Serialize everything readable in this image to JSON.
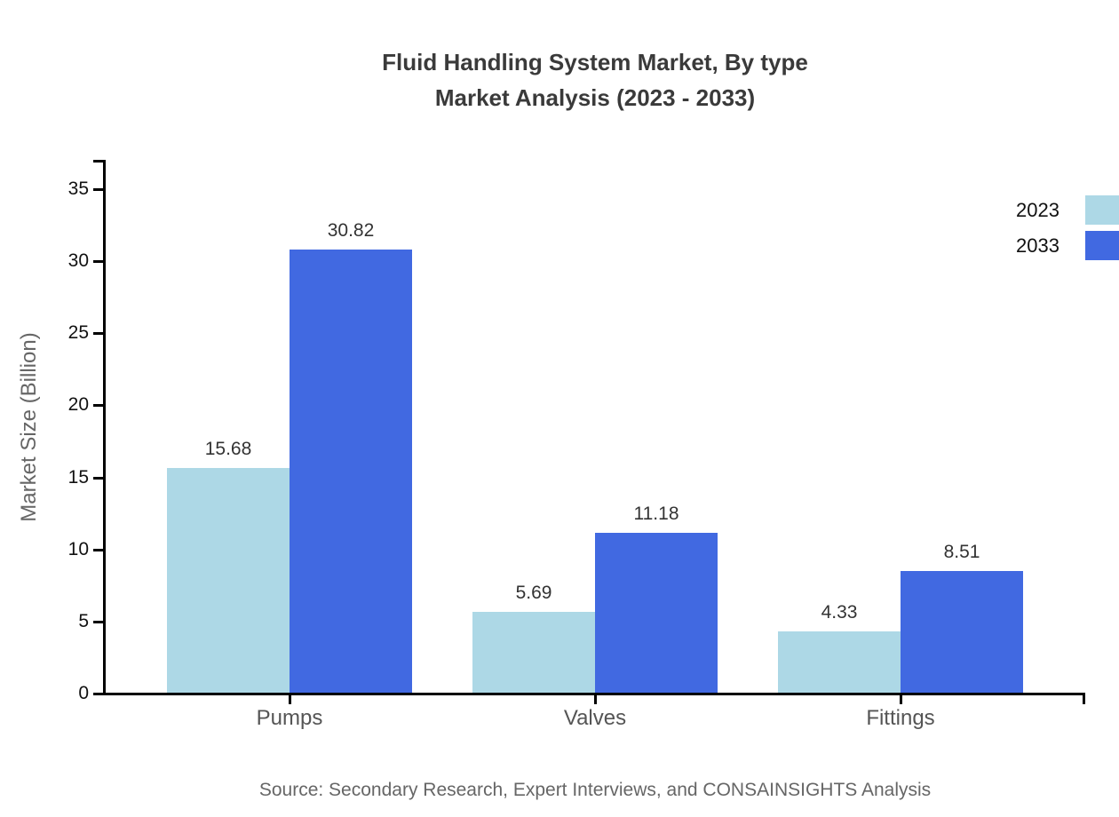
{
  "page": {
    "title_line1": "Fluid Handling System Market, By type",
    "title_line2": "Market Analysis (2023 - 2033)",
    "source": "Source: Secondary Research, Expert Interviews, and CONSAINSIGHTS Analysis"
  },
  "chart_data": {
    "type": "bar",
    "title": "Fluid Handling System Market, By type Market Analysis (2023 - 2033)",
    "categories": [
      "Pumps",
      "Valves",
      "Fittings"
    ],
    "series": [
      {
        "name": "2023",
        "color": "#ADD8E6",
        "values": [
          15.68,
          5.69,
          4.33
        ]
      },
      {
        "name": "2033",
        "color": "#4169E1",
        "values": [
          30.82,
          11.18,
          8.51
        ]
      }
    ],
    "xlabel": "",
    "ylabel": "Market Size (Billion)",
    "ylim": [
      0,
      37
    ],
    "yticks": [
      0,
      5,
      10,
      15,
      20,
      25,
      30,
      35
    ],
    "grid": false,
    "legend_position": "top-right",
    "value_labels": true,
    "value_label_decimals": 2
  },
  "colors": {
    "axis": "#000000",
    "title_text": "#3a3a3a",
    "tick_label": "#111111",
    "category_label": "#555555",
    "value_label": "#333333",
    "muted_text": "#666666",
    "legend_text": "#111111",
    "series_2023": "#ADD8E6",
    "series_2033": "#4169E1"
  }
}
